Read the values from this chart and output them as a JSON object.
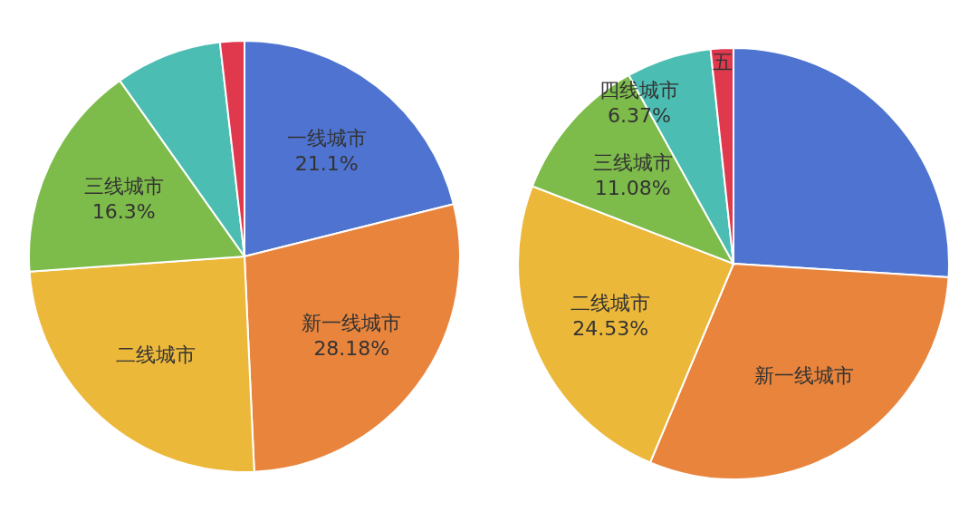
{
  "chart_data": [
    {
      "type": "pie",
      "categories": [
        "一线城市",
        "新一线城市",
        "二线城市",
        "三线城市",
        null,
        null
      ],
      "values": [
        21.1,
        28.18,
        24.6,
        16.3,
        8.0,
        1.82
      ],
      "value_labels": [
        "21.1%",
        "28.18%",
        null,
        "16.3%",
        null,
        null
      ],
      "colors": [
        "#4e73d0",
        "#e9843c",
        "#ecb83a",
        "#7dbb4a",
        "#4cbdb2",
        "#e0394e"
      ]
    },
    {
      "type": "pie",
      "categories": [
        null,
        "新一线城市",
        "二线城市",
        "三线城市",
        "四线城市",
        "五"
      ],
      "values": [
        26.0,
        30.32,
        24.53,
        11.08,
        6.37,
        1.7
      ],
      "value_labels": [
        null,
        null,
        "24.53%",
        "11.08%",
        "6.37%",
        null
      ],
      "colors": [
        "#4e73d0",
        "#e9843c",
        "#ecb83a",
        "#7dbb4a",
        "#4cbdb2",
        "#e0394e"
      ]
    }
  ]
}
